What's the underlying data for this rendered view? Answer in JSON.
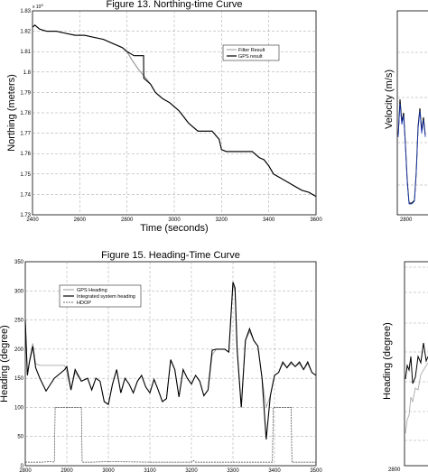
{
  "chart_data": [
    {
      "type": "line",
      "title": "Figure 13.  Northing-time Curve",
      "xlabel": "Time (seconds)",
      "ylabel": "Northing (meters)",
      "y_exponent": "x 10",
      "y_exponent_power": "5",
      "xlim": [
        2400,
        3600
      ],
      "ylim": [
        1.73,
        1.83
      ],
      "xticks": [
        2400,
        2600,
        2800,
        3000,
        3200,
        3400,
        3600
      ],
      "yticks": [
        1.73,
        1.74,
        1.75,
        1.76,
        1.77,
        1.78,
        1.79,
        1.8,
        1.81,
        1.82,
        1.83
      ],
      "ytick_labels": [
        "1.73",
        "1.74",
        "1.75",
        "1.76",
        "1.77",
        "1.78",
        "1.79",
        "1.8",
        "1.81",
        "1.82",
        "1.83"
      ],
      "grid": true,
      "legend_position": "top-right",
      "series": [
        {
          "name": "Filter Result",
          "color": "#999999",
          "x": [
            2400,
            2410,
            2430,
            2460,
            2500,
            2540,
            2580,
            2620,
            2660,
            2700,
            2740,
            2780,
            2800,
            2820,
            2850,
            2880,
            2900,
            2920,
            2950,
            2980,
            3000,
            3020,
            3040,
            3060,
            3080,
            3100,
            3130,
            3160,
            3190,
            3200,
            3220,
            3260,
            3300,
            3330,
            3360,
            3380,
            3400,
            3420,
            3450,
            3480,
            3510,
            3540,
            3570,
            3600
          ],
          "y": [
            1.822,
            1.823,
            1.821,
            1.82,
            1.82,
            1.819,
            1.818,
            1.818,
            1.817,
            1.816,
            1.814,
            1.812,
            1.81,
            1.806,
            1.801,
            1.797,
            1.794,
            1.79,
            1.787,
            1.785,
            1.783,
            1.781,
            1.778,
            1.775,
            1.773,
            1.771,
            1.771,
            1.771,
            1.767,
            1.762,
            1.761,
            1.761,
            1.761,
            1.761,
            1.758,
            1.757,
            1.754,
            1.75,
            1.748,
            1.746,
            1.744,
            1.742,
            1.741,
            1.739
          ]
        },
        {
          "name": "GPS result",
          "color": "#000000",
          "x": [
            2400,
            2410,
            2430,
            2460,
            2500,
            2540,
            2580,
            2620,
            2660,
            2700,
            2740,
            2780,
            2800,
            2830,
            2870,
            2871,
            2900,
            2920,
            2950,
            2980,
            3000,
            3020,
            3040,
            3060,
            3080,
            3100,
            3130,
            3160,
            3190,
            3200,
            3220,
            3260,
            3300,
            3330,
            3360,
            3380,
            3400,
            3420,
            3450,
            3480,
            3510,
            3540,
            3570,
            3600
          ],
          "y": [
            1.822,
            1.823,
            1.821,
            1.82,
            1.82,
            1.819,
            1.818,
            1.818,
            1.817,
            1.816,
            1.814,
            1.812,
            1.81,
            1.808,
            1.808,
            1.797,
            1.794,
            1.79,
            1.787,
            1.785,
            1.783,
            1.781,
            1.778,
            1.775,
            1.773,
            1.771,
            1.771,
            1.771,
            1.767,
            1.762,
            1.761,
            1.761,
            1.761,
            1.761,
            1.758,
            1.757,
            1.754,
            1.75,
            1.748,
            1.746,
            1.744,
            1.742,
            1.741,
            1.739
          ]
        }
      ]
    },
    {
      "type": "line",
      "title": "Figure 15.  Heading-Time Curve",
      "xlabel": "",
      "ylabel": "Heading (degree)",
      "xlim": [
        2800,
        3500
      ],
      "ylim": [
        0,
        350
      ],
      "xticks": [
        2800,
        2900,
        3000,
        3100,
        3200,
        3300,
        3400,
        3500
      ],
      "yticks": [
        0,
        50,
        100,
        150,
        200,
        250,
        300,
        350
      ],
      "grid": true,
      "legend_position": "top-left",
      "series": [
        {
          "name": "GPS Heading",
          "color": "#999999",
          "x": [
            2800,
            2805,
            2810,
            2818,
            2825,
            2835,
            2850,
            2870,
            2895,
            2900,
            2910,
            2920,
            2935,
            2950,
            2960,
            2970,
            2980,
            2990,
            3000,
            3010,
            3020,
            3030,
            3040,
            3050,
            3060,
            3070,
            3080,
            3090,
            3100,
            3110,
            3120,
            3130,
            3140,
            3150,
            3160,
            3170,
            3180,
            3190,
            3200,
            3210,
            3220,
            3230,
            3240,
            3250,
            3260,
            3270,
            3280,
            3290,
            3300,
            3305,
            3310,
            3320,
            3330,
            3340,
            3350,
            3360,
            3370,
            3380,
            3390,
            3400,
            3410,
            3420,
            3430,
            3440,
            3450,
            3460,
            3470,
            3480,
            3490,
            3500
          ],
          "y": [
            250,
            160,
            180,
            210,
            175,
            172,
            172,
            172,
            172,
            160,
            130,
            160,
            145,
            150,
            130,
            150,
            145,
            110,
            105,
            140,
            165,
            125,
            150,
            140,
            125,
            145,
            155,
            135,
            125,
            148,
            130,
            110,
            115,
            180,
            165,
            118,
            165,
            150,
            140,
            155,
            145,
            120,
            130,
            190,
            200,
            200,
            200,
            195,
            310,
            300,
            200,
            100,
            215,
            230,
            215,
            205,
            150,
            100,
            120,
            155,
            160,
            175,
            168,
            175,
            170,
            175,
            165,
            175,
            160,
            155
          ]
        },
        {
          "name": "Integrated system heading",
          "color": "#000000",
          "x": [
            2800,
            2805,
            2810,
            2818,
            2825,
            2835,
            2850,
            2870,
            2895,
            2900,
            2910,
            2920,
            2935,
            2950,
            2960,
            2970,
            2980,
            2990,
            3000,
            3010,
            3020,
            3030,
            3040,
            3050,
            3060,
            3070,
            3080,
            3090,
            3100,
            3110,
            3120,
            3130,
            3140,
            3150,
            3160,
            3170,
            3180,
            3190,
            3200,
            3210,
            3220,
            3230,
            3240,
            3250,
            3260,
            3270,
            3280,
            3290,
            3300,
            3305,
            3310,
            3320,
            3330,
            3340,
            3350,
            3360,
            3370,
            3380,
            3390,
            3400,
            3410,
            3420,
            3430,
            3440,
            3450,
            3460,
            3470,
            3480,
            3490,
            3500
          ],
          "y": [
            250,
            155,
            178,
            205,
            168,
            150,
            128,
            150,
            165,
            170,
            130,
            165,
            145,
            150,
            130,
            150,
            145,
            110,
            105,
            140,
            165,
            125,
            150,
            140,
            125,
            145,
            155,
            135,
            125,
            148,
            130,
            110,
            115,
            182,
            165,
            118,
            165,
            150,
            140,
            155,
            145,
            120,
            130,
            198,
            200,
            200,
            200,
            195,
            315,
            305,
            200,
            100,
            215,
            235,
            215,
            205,
            150,
            45,
            120,
            155,
            160,
            178,
            168,
            178,
            170,
            178,
            165,
            178,
            160,
            155
          ]
        },
        {
          "name": "HDOP",
          "color": "#444444",
          "x": [
            2800,
            2840,
            2860,
            2870,
            2872,
            2935,
            2937,
            2960,
            3000,
            3100,
            3200,
            3205,
            3210,
            3300,
            3395,
            3397,
            3440,
            3442,
            3500
          ],
          "y": [
            6,
            6,
            7,
            6,
            100,
            100,
            6,
            6,
            7,
            6,
            6,
            9,
            6,
            6,
            6,
            100,
            100,
            6,
            6
          ]
        }
      ]
    },
    {
      "type": "line",
      "title": "",
      "xlabel": "",
      "ylabel": "Velocity (m/s)",
      "xtick_first": "2800"
    },
    {
      "type": "line",
      "title": "",
      "xlabel": "",
      "ylabel": "Heading (degree)",
      "xtick_first": "2800"
    }
  ]
}
